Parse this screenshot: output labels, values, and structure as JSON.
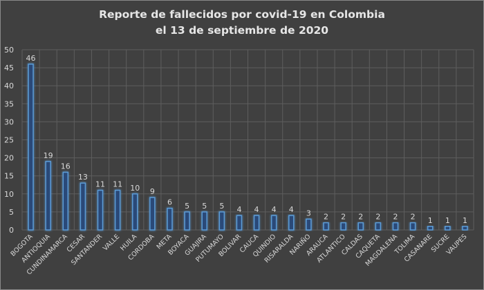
{
  "chart_data": {
    "type": "bar",
    "title": [
      "Reporte de fallecidos por covid-19 en Colombia",
      "el 13 de septiembre de 2020"
    ],
    "xlabel": "",
    "ylabel": "",
    "ylim": [
      0,
      50
    ],
    "yticks": [
      0,
      5,
      10,
      15,
      20,
      25,
      30,
      35,
      40,
      45,
      50
    ],
    "grid": true,
    "legend": "none",
    "categories": [
      "BOGOTA",
      "ANTIOQUIA",
      "CUNDINAMARCA",
      "CESAR",
      "SANTANDER",
      "VALLE",
      "HUILA",
      "CORDOBA",
      "META",
      "BOYACA",
      "GUAJIRA",
      "PUTUMAYO",
      "BOLIVAR",
      "CAUCA",
      "QUINDIO",
      "RISARALDA",
      "NARIÑO",
      "ARAUCA",
      "ATLANTICO",
      "CALDAS",
      "CAQUETA",
      "MAGDALENA",
      "TOLIMA",
      "CASANARE",
      "SUCRE",
      "VAUPES"
    ],
    "values": [
      46,
      19,
      16,
      13,
      11,
      11,
      10,
      9,
      6,
      5,
      5,
      5,
      4,
      4,
      4,
      4,
      3,
      2,
      2,
      2,
      2,
      2,
      2,
      1,
      1,
      1
    ],
    "colors": {
      "bar_fill": "#2a4a78",
      "bar_edge": "#5b9bd5",
      "text": "#d9d9d9",
      "grid": "#5e5e5e"
    }
  }
}
